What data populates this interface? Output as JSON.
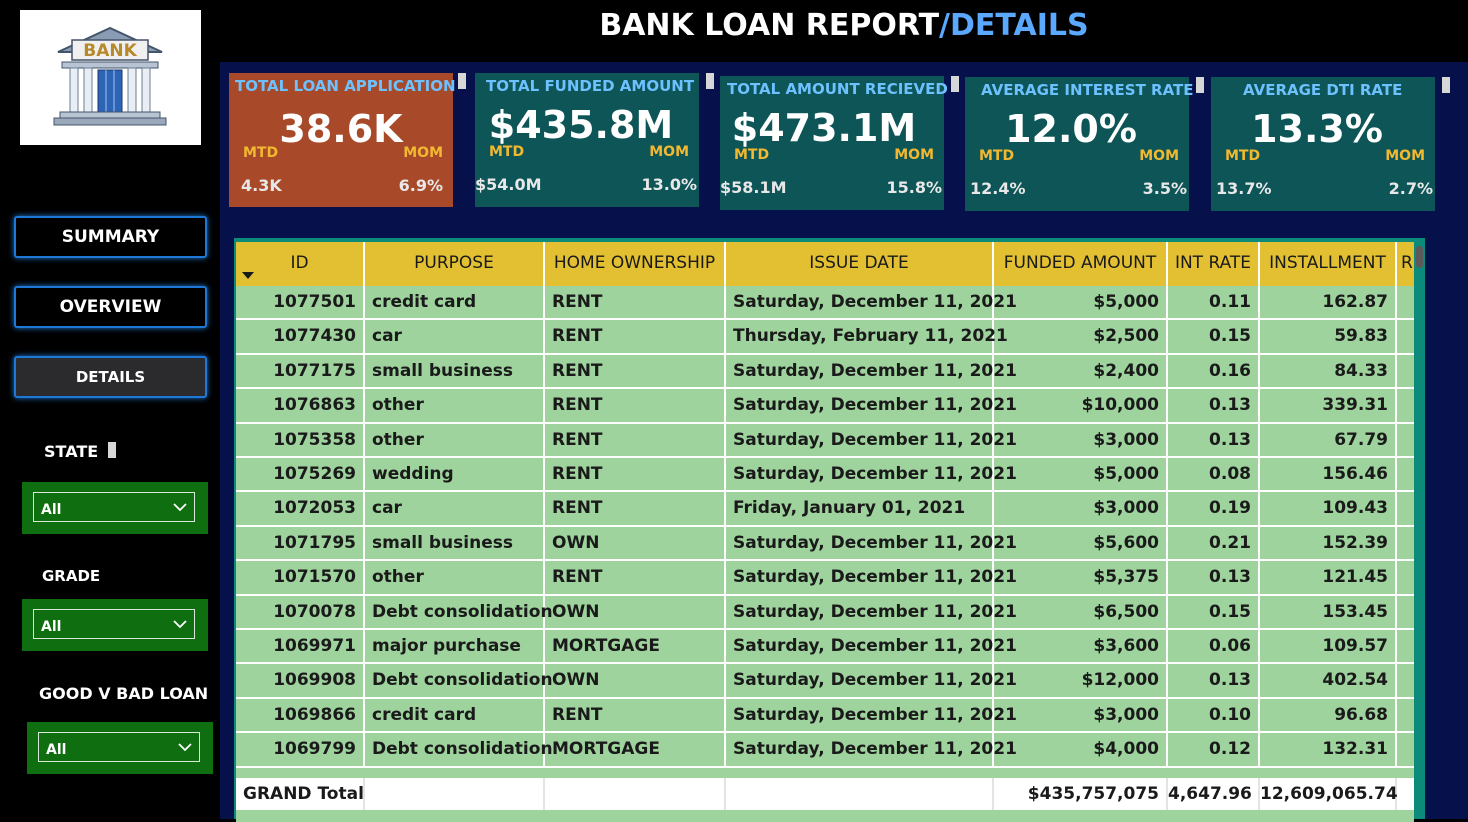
{
  "header": {
    "title_main": "BANK LOAN REPORT",
    "title_accent": "/DETAILS",
    "logo_text": "BANK"
  },
  "nav": {
    "summary": "SUMMARY",
    "overview": "OVERVIEW",
    "details": "DETAILS"
  },
  "slicers": {
    "state": {
      "label": "STATE",
      "value": "All"
    },
    "grade": {
      "label": "GRADE",
      "value": "All"
    },
    "good_bad": {
      "label": "GOOD V BAD LOAN",
      "value": "All"
    }
  },
  "kpis": [
    {
      "title": "TOTAL LOAN APPLICATION",
      "value": "38.6K",
      "mtd_label": "MTD",
      "mom_label": "MOM",
      "mtd": "4.3K",
      "mom": "6.9%",
      "color": "#a84a2a"
    },
    {
      "title": "TOTAL FUNDED AMOUNT",
      "value": "$435.8M",
      "mtd_label": "MTD",
      "mom_label": "MOM",
      "mtd": "$54.0M",
      "mom": "13.0%",
      "color": "#0d5557"
    },
    {
      "title": "TOTAL AMOUNT RECIEVED",
      "value": "$473.1M",
      "mtd_label": "MTD",
      "mom_label": "MOM",
      "mtd": "$58.1M",
      "mom": "15.8%",
      "color": "#0d5557"
    },
    {
      "title": "AVERAGE INTEREST RATE",
      "value": "12.0%",
      "mtd_label": "MTD",
      "mom_label": "MOM",
      "mtd": "12.4%",
      "mom": "3.5%",
      "color": "#0d5557"
    },
    {
      "title": "AVERAGE DTI RATE",
      "value": "13.3%",
      "mtd_label": "MTD",
      "mom_label": "MOM",
      "mtd": "13.7%",
      "mom": "2.7%",
      "color": "#0d5557"
    }
  ],
  "table": {
    "columns": [
      "ID",
      "PURPOSE",
      "HOME OWNERSHIP",
      "ISSUE DATE",
      "FUNDED AMOUNT",
      "INT RATE",
      "INSTALLMENT",
      "R"
    ],
    "rows": [
      [
        "1077501",
        "credit card",
        "RENT",
        "Saturday, December 11, 2021",
        "$5,000",
        "0.11",
        "162.87"
      ],
      [
        "1077430",
        "car",
        "RENT",
        "Thursday, February 11, 2021",
        "$2,500",
        "0.15",
        "59.83"
      ],
      [
        "1077175",
        "small business",
        "RENT",
        "Saturday, December 11, 2021",
        "$2,400",
        "0.16",
        "84.33"
      ],
      [
        "1076863",
        "other",
        "RENT",
        "Saturday, December 11, 2021",
        "$10,000",
        "0.13",
        "339.31"
      ],
      [
        "1075358",
        "other",
        "RENT",
        "Saturday, December 11, 2021",
        "$3,000",
        "0.13",
        "67.79"
      ],
      [
        "1075269",
        "wedding",
        "RENT",
        "Saturday, December 11, 2021",
        "$5,000",
        "0.08",
        "156.46"
      ],
      [
        "1072053",
        "car",
        "RENT",
        "Friday, January 01, 2021",
        "$3,000",
        "0.19",
        "109.43"
      ],
      [
        "1071795",
        "small business",
        "OWN",
        "Saturday, December 11, 2021",
        "$5,600",
        "0.21",
        "152.39"
      ],
      [
        "1071570",
        "other",
        "RENT",
        "Saturday, December 11, 2021",
        "$5,375",
        "0.13",
        "121.45"
      ],
      [
        "1070078",
        "Debt consolidation",
        "OWN",
        "Saturday, December 11, 2021",
        "$6,500",
        "0.15",
        "153.45"
      ],
      [
        "1069971",
        "major purchase",
        "MORTGAGE",
        "Saturday, December 11, 2021",
        "$3,600",
        "0.06",
        "109.57"
      ],
      [
        "1069908",
        "Debt consolidation",
        "OWN",
        "Saturday, December 11, 2021",
        "$12,000",
        "0.13",
        "402.54"
      ],
      [
        "1069866",
        "credit card",
        "RENT",
        "Saturday, December 11, 2021",
        "$3,000",
        "0.10",
        "96.68"
      ],
      [
        "1069799",
        "Debt consolidation",
        "MORTGAGE",
        "Saturday, December 11, 2021",
        "$4,000",
        "0.12",
        "132.31"
      ]
    ],
    "total": {
      "label": "GRAND Total",
      "funded": "$435,757,075",
      "int_rate": "4,647.96",
      "installment": "12,609,065.74"
    }
  }
}
